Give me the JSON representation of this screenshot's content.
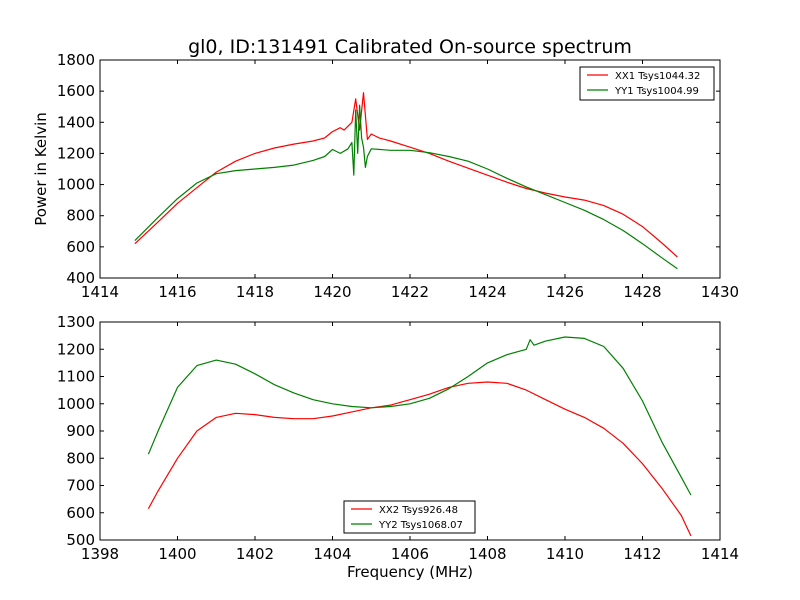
{
  "figure": {
    "title": "gl0, ID:131491 Calibrated On-source spectrum",
    "xlabel": "Frequency (MHz)",
    "ylabel": "Power in Kelvin"
  },
  "chart_data": [
    {
      "type": "line",
      "title": "gl0, ID:131491 Calibrated On-source spectrum",
      "xlabel": "",
      "ylabel": "Power in Kelvin",
      "xlim": [
        1414,
        1430
      ],
      "ylim": [
        400,
        1800
      ],
      "xticks": [
        "1414",
        "1416",
        "1418",
        "1420",
        "1422",
        "1424",
        "1426",
        "1428",
        "1430"
      ],
      "yticks": [
        "400",
        "600",
        "800",
        "1000",
        "1200",
        "1400",
        "1600",
        "1800"
      ],
      "legend_position": "top-right",
      "grid": false,
      "series": [
        {
          "name": "XX1 Tsys1044.32",
          "color": "#ff0000",
          "x": [
            1414.9,
            1415.5,
            1416.0,
            1416.5,
            1417.0,
            1417.5,
            1418.0,
            1418.5,
            1419.0,
            1419.5,
            1419.8,
            1420.0,
            1420.2,
            1420.3,
            1420.5,
            1420.6,
            1420.7,
            1420.8,
            1420.9,
            1421.0,
            1421.2,
            1421.5,
            1422.0,
            1422.5,
            1423.0,
            1423.5,
            1424.0,
            1424.5,
            1425.0,
            1425.5,
            1426.0,
            1426.5,
            1427.0,
            1427.5,
            1428.0,
            1428.5,
            1428.9
          ],
          "values": [
            620,
            760,
            880,
            980,
            1080,
            1150,
            1200,
            1235,
            1260,
            1280,
            1300,
            1340,
            1365,
            1350,
            1400,
            1550,
            1350,
            1590,
            1290,
            1325,
            1300,
            1280,
            1240,
            1200,
            1150,
            1105,
            1060,
            1015,
            975,
            945,
            920,
            900,
            865,
            810,
            730,
            625,
            535
          ]
        },
        {
          "name": "YY1 Tsys1004.99",
          "color": "#008000",
          "x": [
            1414.9,
            1415.5,
            1416.0,
            1416.5,
            1417.0,
            1417.5,
            1418.0,
            1418.5,
            1419.0,
            1419.5,
            1419.8,
            1420.0,
            1420.2,
            1420.4,
            1420.5,
            1420.55,
            1420.6,
            1420.65,
            1420.7,
            1420.75,
            1420.8,
            1420.85,
            1420.9,
            1421.0,
            1421.5,
            1422.0,
            1422.5,
            1423.0,
            1423.5,
            1424.0,
            1424.5,
            1425.0,
            1425.5,
            1426.0,
            1426.5,
            1427.0,
            1427.5,
            1428.0,
            1428.5,
            1428.9
          ],
          "values": [
            640,
            790,
            910,
            1010,
            1070,
            1090,
            1100,
            1110,
            1125,
            1155,
            1180,
            1225,
            1200,
            1230,
            1270,
            1060,
            1480,
            1200,
            1510,
            1300,
            1240,
            1110,
            1180,
            1230,
            1220,
            1220,
            1205,
            1180,
            1150,
            1100,
            1040,
            985,
            935,
            885,
            835,
            775,
            705,
            620,
            530,
            460
          ]
        }
      ]
    },
    {
      "type": "line",
      "title": "",
      "xlabel": "Frequency (MHz)",
      "ylabel": "",
      "xlim": [
        1398,
        1414
      ],
      "ylim": [
        500,
        1300
      ],
      "xticks": [
        "1398",
        "1400",
        "1402",
        "1404",
        "1406",
        "1408",
        "1410",
        "1412",
        "1414"
      ],
      "yticks": [
        "500",
        "600",
        "700",
        "800",
        "900",
        "1000",
        "1100",
        "1200",
        "1300"
      ],
      "legend_position": "bottom-center",
      "grid": false,
      "series": [
        {
          "name": "XX2 Tsys926.48",
          "color": "#ff0000",
          "x": [
            1399.25,
            1399.5,
            1400.0,
            1400.5,
            1401.0,
            1401.5,
            1402.0,
            1402.5,
            1403.0,
            1403.5,
            1404.0,
            1404.5,
            1405.0,
            1405.5,
            1406.0,
            1406.5,
            1407.0,
            1407.5,
            1408.0,
            1408.5,
            1409.0,
            1409.5,
            1410.0,
            1410.5,
            1411.0,
            1411.5,
            1412.0,
            1412.5,
            1413.0,
            1413.25
          ],
          "values": [
            615,
            680,
            800,
            900,
            950,
            965,
            960,
            950,
            945,
            945,
            955,
            970,
            985,
            995,
            1015,
            1035,
            1060,
            1075,
            1080,
            1075,
            1050,
            1015,
            980,
            950,
            910,
            855,
            780,
            690,
            590,
            515
          ]
        },
        {
          "name": "YY2 Tsys1068.07",
          "color": "#008000",
          "x": [
            1399.25,
            1399.5,
            1400.0,
            1400.5,
            1401.0,
            1401.5,
            1402.0,
            1402.5,
            1403.0,
            1403.5,
            1404.0,
            1404.5,
            1405.0,
            1405.5,
            1406.0,
            1406.5,
            1407.0,
            1407.5,
            1408.0,
            1408.5,
            1409.0,
            1409.1,
            1409.2,
            1409.5,
            1410.0,
            1410.5,
            1411.0,
            1411.5,
            1412.0,
            1412.5,
            1413.0,
            1413.25
          ],
          "values": [
            815,
            900,
            1060,
            1140,
            1160,
            1145,
            1110,
            1070,
            1040,
            1015,
            1000,
            990,
            985,
            990,
            1000,
            1020,
            1055,
            1100,
            1150,
            1180,
            1200,
            1235,
            1215,
            1230,
            1245,
            1240,
            1210,
            1130,
            1010,
            860,
            730,
            665
          ]
        }
      ]
    }
  ]
}
